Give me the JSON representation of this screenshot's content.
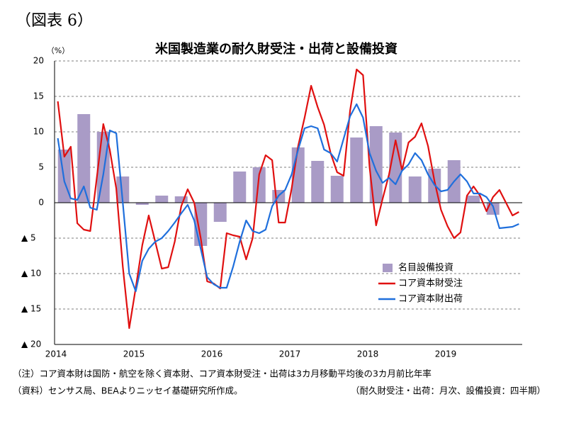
{
  "header": "（図表 6）",
  "chart_data": {
    "type": "combo",
    "title": "米国製造業の耐久財受注・出荷と設備投資",
    "y_unit": "（%）",
    "categories": [
      "2014",
      null,
      null,
      null,
      null,
      null,
      null,
      null,
      null,
      null,
      null,
      null,
      "2015",
      null,
      null,
      null,
      null,
      null,
      null,
      null,
      null,
      null,
      null,
      null,
      "2016",
      null,
      null,
      null,
      null,
      null,
      null,
      null,
      null,
      null,
      null,
      null,
      "2017",
      null,
      null,
      null,
      null,
      null,
      null,
      null,
      null,
      null,
      null,
      null,
      "2018",
      null,
      null,
      null,
      null,
      null,
      null,
      null,
      null,
      null,
      null,
      null,
      "2019",
      null,
      null,
      null,
      null,
      null,
      null,
      null,
      null,
      null,
      null,
      null
    ],
    "ylim": [
      -20,
      20
    ],
    "yticks": [
      20,
      15,
      10,
      5,
      0,
      {
        "value": -5,
        "label": "▲ 5"
      },
      {
        "value": -10,
        "label": "▲ 10"
      },
      {
        "value": -15,
        "label": "▲ 15"
      },
      {
        "value": -20,
        "label": "▲ 20"
      }
    ],
    "grid": true,
    "series": [
      {
        "name": "名目設備投資",
        "kind": "bar",
        "color": "#a99bc6",
        "values": [
          null,
          7.5,
          null,
          null,
          12.5,
          null,
          null,
          10,
          null,
          null,
          3.7,
          null,
          null,
          -0.3,
          null,
          null,
          1.0,
          null,
          null,
          0.9,
          null,
          null,
          -6.1,
          null,
          null,
          -2.7,
          null,
          null,
          4.4,
          null,
          null,
          5.0,
          null,
          null,
          1.8,
          null,
          null,
          7.8,
          null,
          null,
          5.9,
          null,
          null,
          3.8,
          null,
          null,
          9.2,
          null,
          null,
          10.8,
          null,
          null,
          9.9,
          null,
          null,
          3.7,
          null,
          null,
          4.8,
          null,
          null,
          6.0,
          null,
          null,
          1.0,
          null,
          null,
          -1.7,
          null,
          null,
          null,
          null
        ]
      },
      {
        "name": "コア資本財受注",
        "kind": "line",
        "color": "#e01010",
        "values": [
          14.3,
          6.5,
          7.9,
          -2.9,
          -3.8,
          -4.0,
          3.5,
          11.1,
          7.5,
          2.0,
          -9.0,
          -17.7,
          -12.0,
          -6.0,
          -1.8,
          -5.5,
          -9.3,
          -9.1,
          -5.5,
          -0.5,
          1.9,
          0.0,
          -5.0,
          -11.1,
          -11.4,
          -12.1,
          -4.3,
          -4.6,
          -4.8,
          -8.0,
          -5.0,
          4.0,
          6.7,
          6.0,
          -2.8,
          -2.8,
          2.0,
          8.0,
          12.0,
          16.5,
          13.5,
          11.0,
          7.0,
          4.3,
          3.8,
          13.0,
          18.8,
          18.0,
          5.0,
          -3.2,
          0.5,
          4.0,
          8.8,
          4.6,
          8.5,
          9.3,
          11.2,
          8.0,
          3.0,
          -1.0,
          -3.3,
          -5.0,
          -4.2,
          1.0,
          2.3,
          1.0,
          -1.2,
          0.8,
          1.8,
          0.0,
          -1.8,
          -1.3
        ]
      },
      {
        "name": "コア資本財出荷",
        "kind": "line",
        "color": "#1f6fdc",
        "values": [
          9.1,
          3.0,
          0.6,
          0.4,
          2.3,
          -0.7,
          -1.0,
          4.0,
          10.2,
          9.8,
          0.0,
          -10.0,
          -12.5,
          -8.2,
          -6.5,
          -5.5,
          -5.0,
          -4.0,
          -2.8,
          -1.5,
          -0.3,
          -2.5,
          -6.5,
          -10.5,
          -11.5,
          -12.0,
          -12.0,
          -9.0,
          -5.5,
          -2.5,
          -4.0,
          -4.3,
          -3.8,
          -0.5,
          1.0,
          1.8,
          4.0,
          7.5,
          10.5,
          10.8,
          10.5,
          7.5,
          7.0,
          5.8,
          9.0,
          12.2,
          13.9,
          12.0,
          7.0,
          4.5,
          2.8,
          3.5,
          2.6,
          4.5,
          5.4,
          7.0,
          6.0,
          4.0,
          2.5,
          1.6,
          1.8,
          3.0,
          4.0,
          3.0,
          1.3,
          1.3,
          0.8,
          -0.5,
          -3.6,
          -3.5,
          -3.4,
          -3.0
        ]
      }
    ]
  },
  "notes": [
    "（注）コア資本財は国防・航空を除く資本財、コア資本財受注・出荷は3カ月移動平均後の3カ月前比年率",
    "（資料）センサス局、BEAよりニッセイ基礎研究所作成。",
    "（耐久財受注・出荷：月次、設備投資：四半期）"
  ]
}
